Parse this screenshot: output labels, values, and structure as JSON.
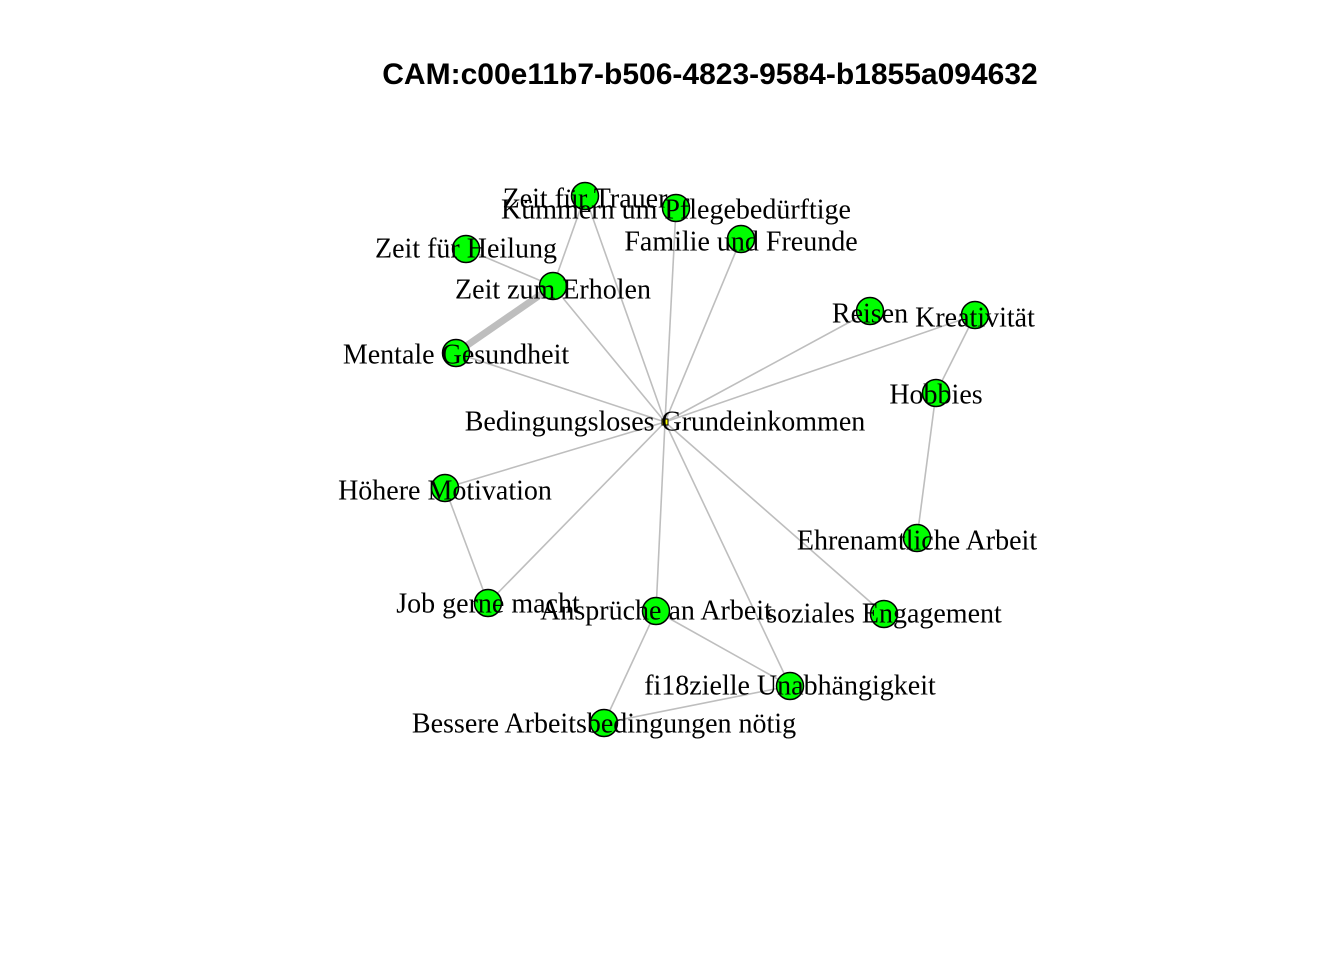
{
  "title": "CAM:c00e11b7-b506-4823-9584-b1855a094632",
  "colors": {
    "node_fill": "#00ff00",
    "node_stroke": "#000000",
    "center_fill": "#ffff00",
    "edge": "#bebebe"
  },
  "nodes": [
    {
      "id": "bgk",
      "label": "Bedingungsloses Grundeinkommen",
      "type": "center"
    },
    {
      "id": "trauer",
      "label": "Zeit für Trauer"
    },
    {
      "id": "pflege",
      "label": "Kümmern um Pflegebedürftige"
    },
    {
      "id": "familie",
      "label": "Familie und Freunde"
    },
    {
      "id": "heilung",
      "label": "Zeit für Heilung"
    },
    {
      "id": "erholen",
      "label": "Zeit zum Erholen"
    },
    {
      "id": "mental",
      "label": "Mentale Gesundheit"
    },
    {
      "id": "reisen",
      "label": "Reisen"
    },
    {
      "id": "kreativ",
      "label": "Kreativität"
    },
    {
      "id": "hobbies",
      "label": "Hobbies"
    },
    {
      "id": "motivation",
      "label": "Höhere Motivation"
    },
    {
      "id": "ehrenamt",
      "label": "Ehrenamtliche Arbeit"
    },
    {
      "id": "job",
      "label": "Job gerne macht"
    },
    {
      "id": "ansprueche",
      "label": "Ansprüche an Arbeit"
    },
    {
      "id": "sozial",
      "label": "soziales Engagement"
    },
    {
      "id": "finanz",
      "label": "fi18zielle Unabhängigkeit"
    },
    {
      "id": "bessere",
      "label": "Bessere Arbeitsbedingungen nötig"
    }
  ],
  "edges": [
    {
      "from": "bgk",
      "to": "trauer",
      "weight": 1
    },
    {
      "from": "bgk",
      "to": "pflege",
      "weight": 1
    },
    {
      "from": "bgk",
      "to": "familie",
      "weight": 1
    },
    {
      "from": "bgk",
      "to": "erholen",
      "weight": 1
    },
    {
      "from": "bgk",
      "to": "mental",
      "weight": 1
    },
    {
      "from": "bgk",
      "to": "reisen",
      "weight": 1
    },
    {
      "from": "bgk",
      "to": "kreativ",
      "weight": 1
    },
    {
      "from": "bgk",
      "to": "motivation",
      "weight": 1
    },
    {
      "from": "bgk",
      "to": "job",
      "weight": 1
    },
    {
      "from": "bgk",
      "to": "ansprueche",
      "weight": 1
    },
    {
      "from": "bgk",
      "to": "sozial",
      "weight": 1
    },
    {
      "from": "bgk",
      "to": "finanz",
      "weight": 1
    },
    {
      "from": "trauer",
      "to": "erholen",
      "weight": 1
    },
    {
      "from": "heilung",
      "to": "erholen",
      "weight": 1
    },
    {
      "from": "erholen",
      "to": "mental",
      "weight": 4
    },
    {
      "from": "kreativ",
      "to": "hobbies",
      "weight": 1
    },
    {
      "from": "hobbies",
      "to": "ehrenamt",
      "weight": 1
    },
    {
      "from": "motivation",
      "to": "job",
      "weight": 1
    },
    {
      "from": "ansprueche",
      "to": "finanz",
      "weight": 1
    },
    {
      "from": "ansprueche",
      "to": "bessere",
      "weight": 1
    },
    {
      "from": "finanz",
      "to": "bessere",
      "weight": 1
    }
  ]
}
